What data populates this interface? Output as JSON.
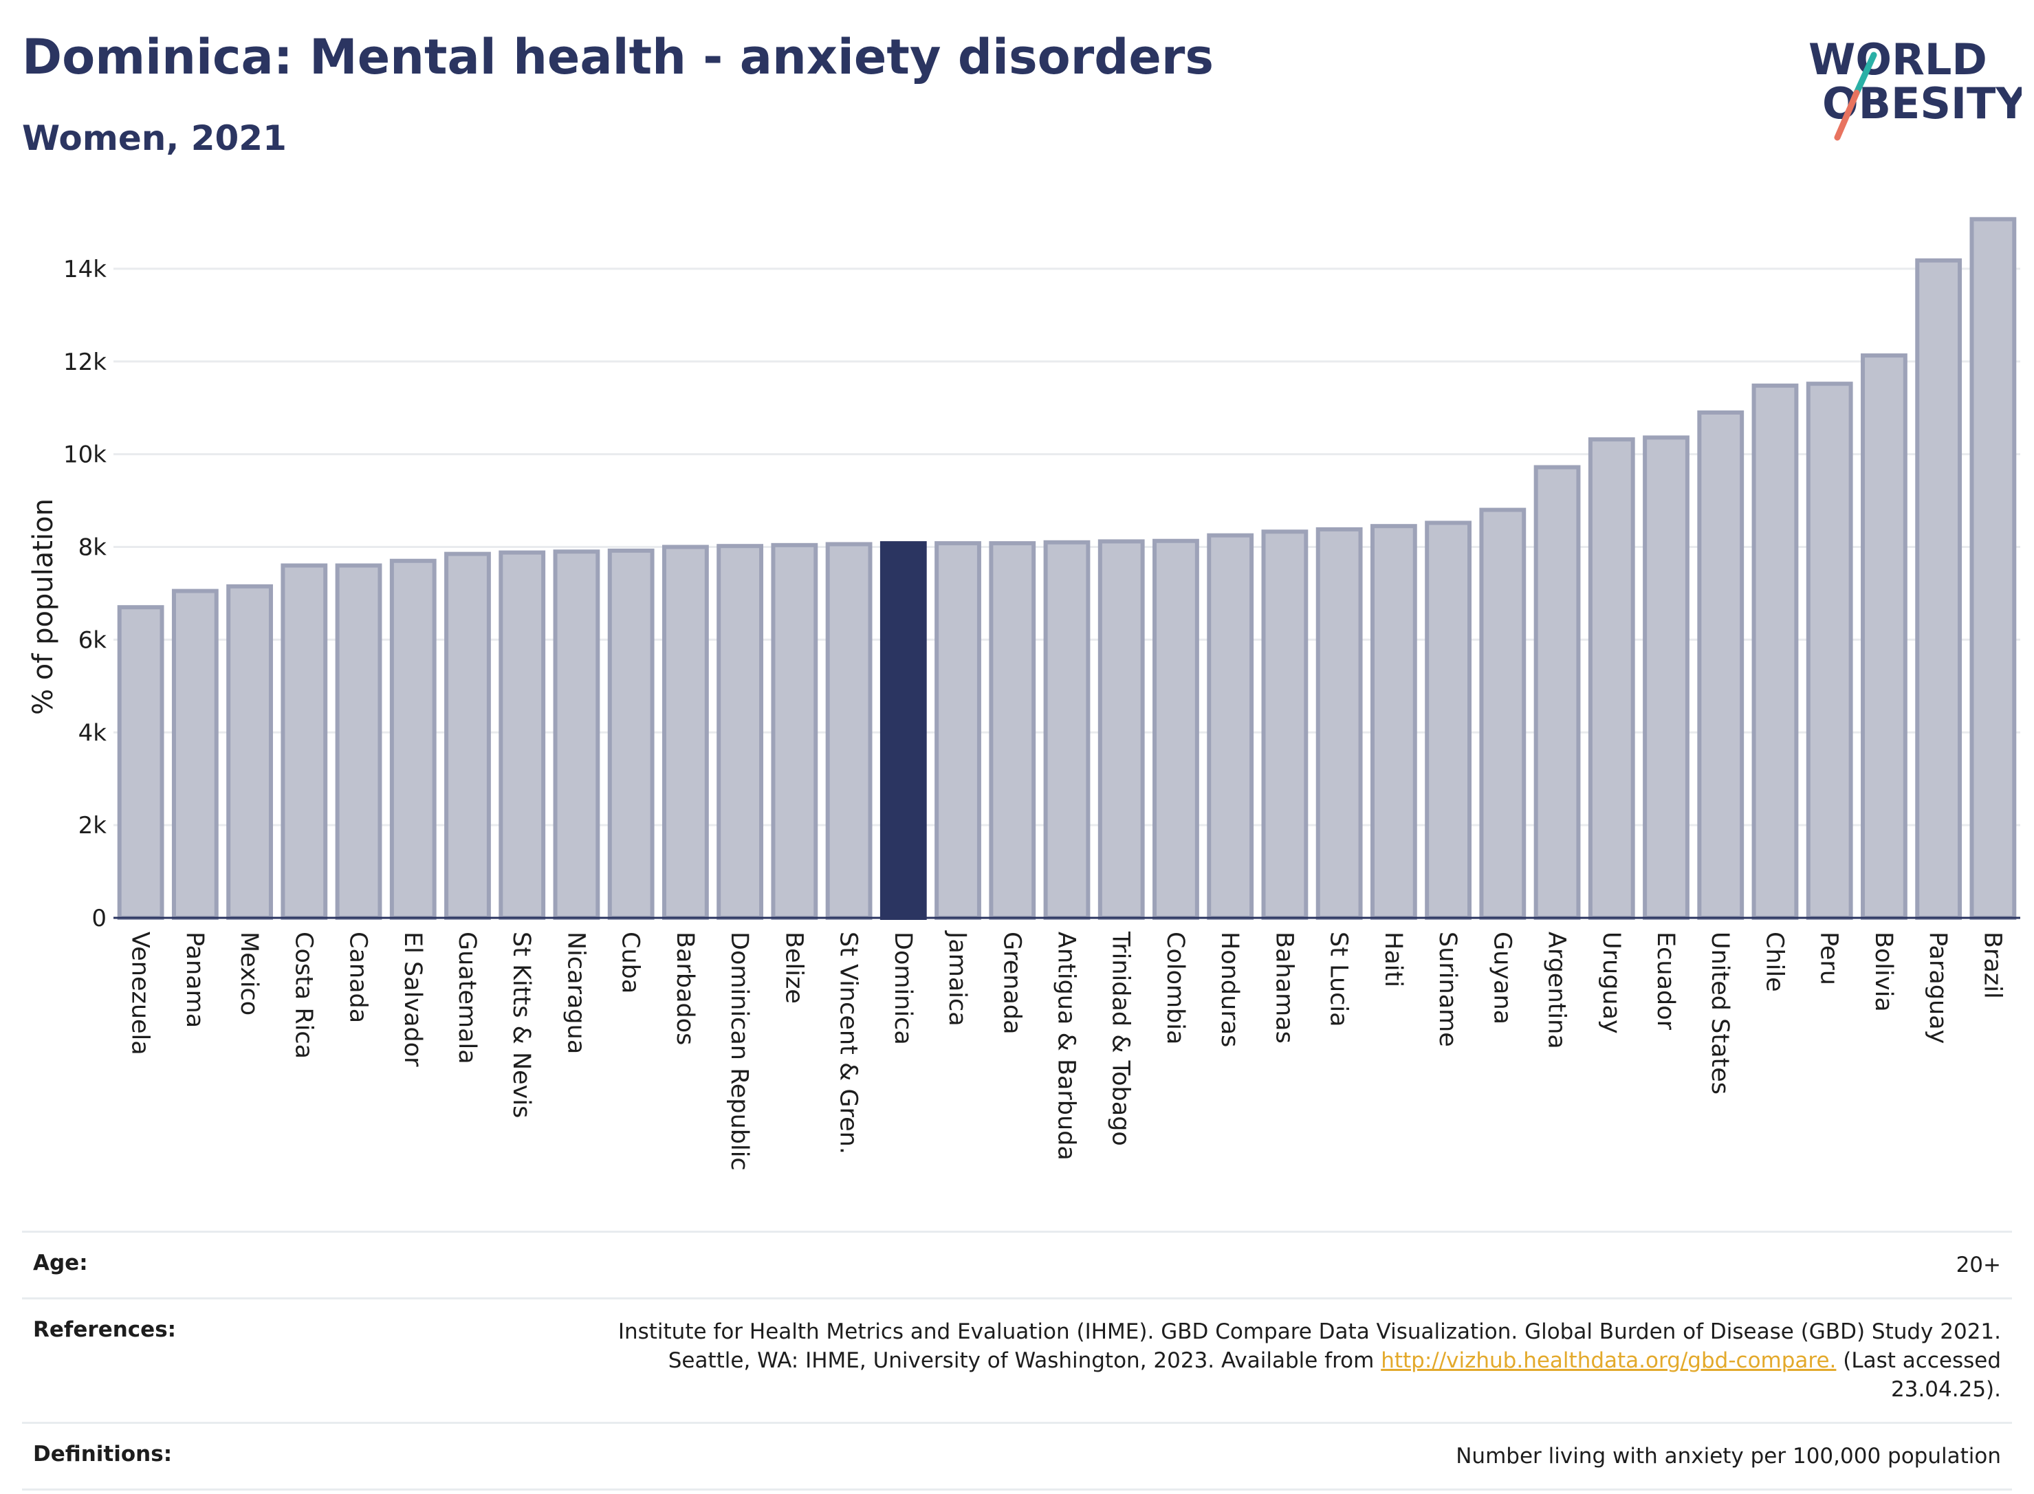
{
  "header": {
    "title": "Dominica: Mental health - anxiety disorders",
    "subtitle": "Women, 2021"
  },
  "logo": {
    "line1": "WORLD",
    "line2": "OBESITY",
    "colors": {
      "text": "#2b3561",
      "slash_teal": "#2ab0a6",
      "slash_coral": "#e8735f"
    }
  },
  "colors": {
    "bar": "#bfc2cf",
    "bar_outline": "#9da2b8",
    "highlight": "#2b3561",
    "grid": "#e9ebee",
    "axis": "#2b3561",
    "link": "#e3a92b"
  },
  "chart_data": {
    "type": "bar",
    "title": "Dominica: Mental health - anxiety disorders",
    "subtitle": "Women, 2021",
    "ylabel": "% of population",
    "xlabel": "",
    "ylim": [
      0,
      15200
    ],
    "yticks": [
      0,
      2000,
      4000,
      6000,
      8000,
      10000,
      12000,
      14000
    ],
    "ytick_labels": [
      "0",
      "2k",
      "4k",
      "6k",
      "8k",
      "10k",
      "12k",
      "14k"
    ],
    "grid": "horizontal",
    "highlight": "Dominica",
    "categories": [
      "Venezuela",
      "Panama",
      "Mexico",
      "Costa Rica",
      "Canada",
      "El Salvador",
      "Guatemala",
      "St Kitts & Nevis",
      "Nicaragua",
      "Cuba",
      "Barbados",
      "Dominican Republic",
      "Belize",
      "St Vincent & Gren.",
      "Dominica",
      "Jamaica",
      "Grenada",
      "Antigua & Barbuda",
      "Trinidad & Tobago",
      "Colombia",
      "Honduras",
      "Bahamas",
      "St Lucia",
      "Haiti",
      "Suriname",
      "Guyana",
      "Argentina",
      "Uruguay",
      "Ecuador",
      "United States",
      "Chile",
      "Peru",
      "Bolivia",
      "Paraguay",
      "Brazil"
    ],
    "values": [
      6700,
      7050,
      7150,
      7600,
      7600,
      7700,
      7850,
      7880,
      7900,
      7920,
      8000,
      8020,
      8040,
      8060,
      8080,
      8080,
      8080,
      8100,
      8120,
      8130,
      8250,
      8330,
      8380,
      8450,
      8520,
      8800,
      9720,
      10320,
      10360,
      10900,
      11480,
      11520,
      12130,
      14180,
      15070
    ]
  },
  "info": {
    "age_label": "Age:",
    "age_value": "20+",
    "references_label": "References:",
    "references_line1": "Institute for Health Metrics and Evaluation (IHME). GBD Compare Data Visualization. Global Burden of Disease (GBD) Study 2021.",
    "references_line2_before": "Seattle, WA: IHME, University of Washington, 2023. Available from",
    "references_link": "http://vizhub.healthdata.org/gbd-compare.",
    "references_line2_after": "(Last accessed",
    "references_line3": "23.04.25).",
    "definitions_label": "Definitions:",
    "definitions_value": "Number living with anxiety per 100,000 population"
  }
}
